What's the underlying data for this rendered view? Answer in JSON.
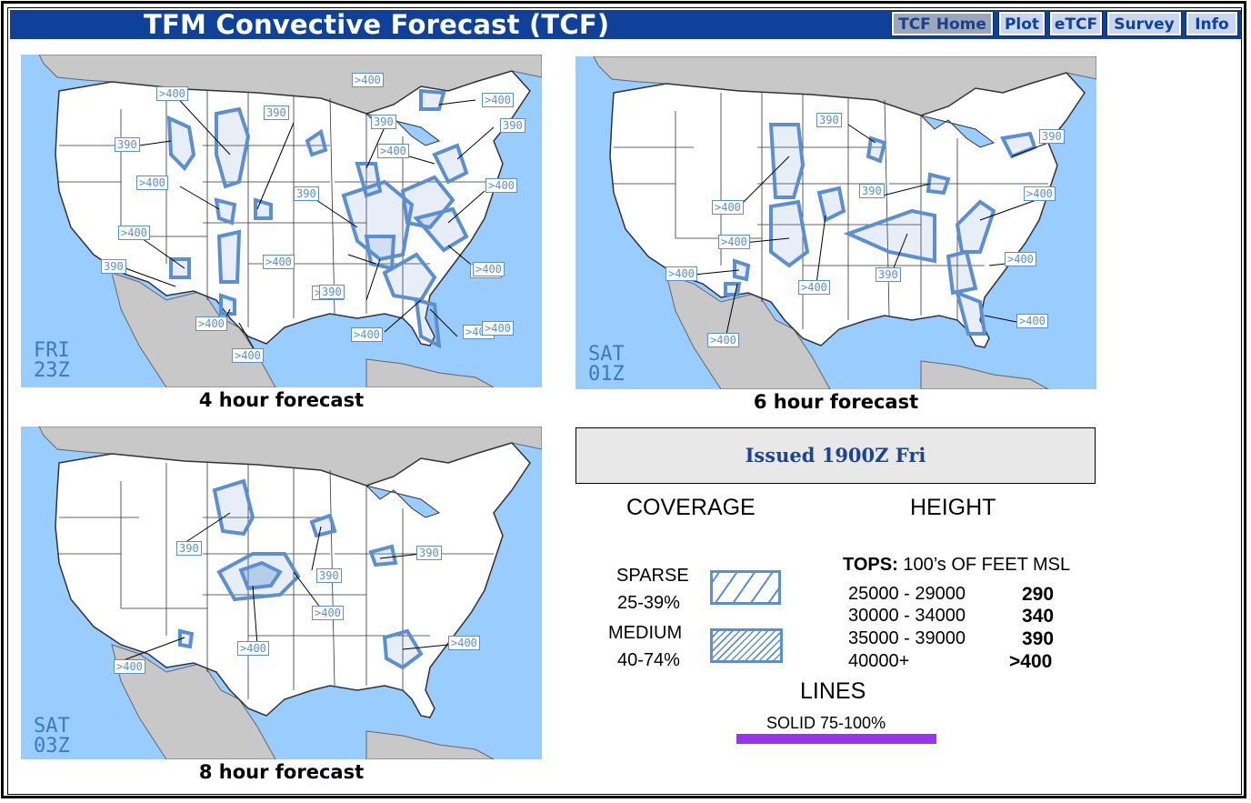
{
  "header": {
    "title": "TFM Convective Forecast (TCF)",
    "nav": [
      {
        "label": "TCF Home",
        "active": true
      },
      {
        "label": "Plot",
        "active": false
      },
      {
        "label": "eTCF",
        "active": false
      },
      {
        "label": "Survey",
        "active": false
      },
      {
        "label": "Info",
        "active": false
      }
    ]
  },
  "maps": [
    {
      "caption": "4 hour forecast",
      "day": "FRI",
      "time": "23Z",
      "labels": [
        "390",
        ">400",
        "390",
        ">400",
        "390",
        ">400",
        "390",
        "390",
        ">400",
        ">400",
        ">400",
        ">400",
        "390",
        ">400",
        ">400",
        ">400",
        ">400",
        ">400",
        ">400",
        ">400",
        "390",
        ">400",
        ">400"
      ]
    },
    {
      "caption": "6 hour forecast",
      "day": "SAT",
      "time": "01Z",
      "labels": [
        "390",
        "390",
        ">400",
        "390",
        ">400",
        ">400",
        ">400",
        "390",
        ">400",
        ">400",
        ">400",
        ">400"
      ]
    },
    {
      "caption": "8 hour forecast",
      "day": "SAT",
      "time": "03Z",
      "labels": [
        "390",
        "390",
        "390",
        ">400",
        ">400",
        ">400",
        ">400"
      ]
    }
  ],
  "issued": "Issued 1900Z Fri",
  "legend": {
    "coverage_heading": "COVERAGE",
    "height_heading": "HEIGHT",
    "sparse_name": "SPARSE",
    "sparse_range": "25-39%",
    "medium_name": "MEDIUM",
    "medium_range": "40-74%",
    "tops_label": "TOPS:",
    "tops_rest": "100’s OF FEET MSL",
    "tops": [
      {
        "range": "25000 - 29000",
        "code": "290"
      },
      {
        "range": "30000 - 34000",
        "code": "340"
      },
      {
        "range": "35000 - 39000",
        "code": "390"
      },
      {
        "range": "40000+",
        "code": ">400"
      }
    ],
    "lines_heading": "LINES",
    "solid_label": "SOLID 75-100%"
  },
  "colors": {
    "header_bg": "#10419a",
    "ocean": "#99ccff",
    "land_us": "#ffffff",
    "land_other": "#c8c8c8",
    "forecast_outline": "#5b8fd0",
    "label_text": "#5b8fd0",
    "line_solid": "#9933ee"
  }
}
